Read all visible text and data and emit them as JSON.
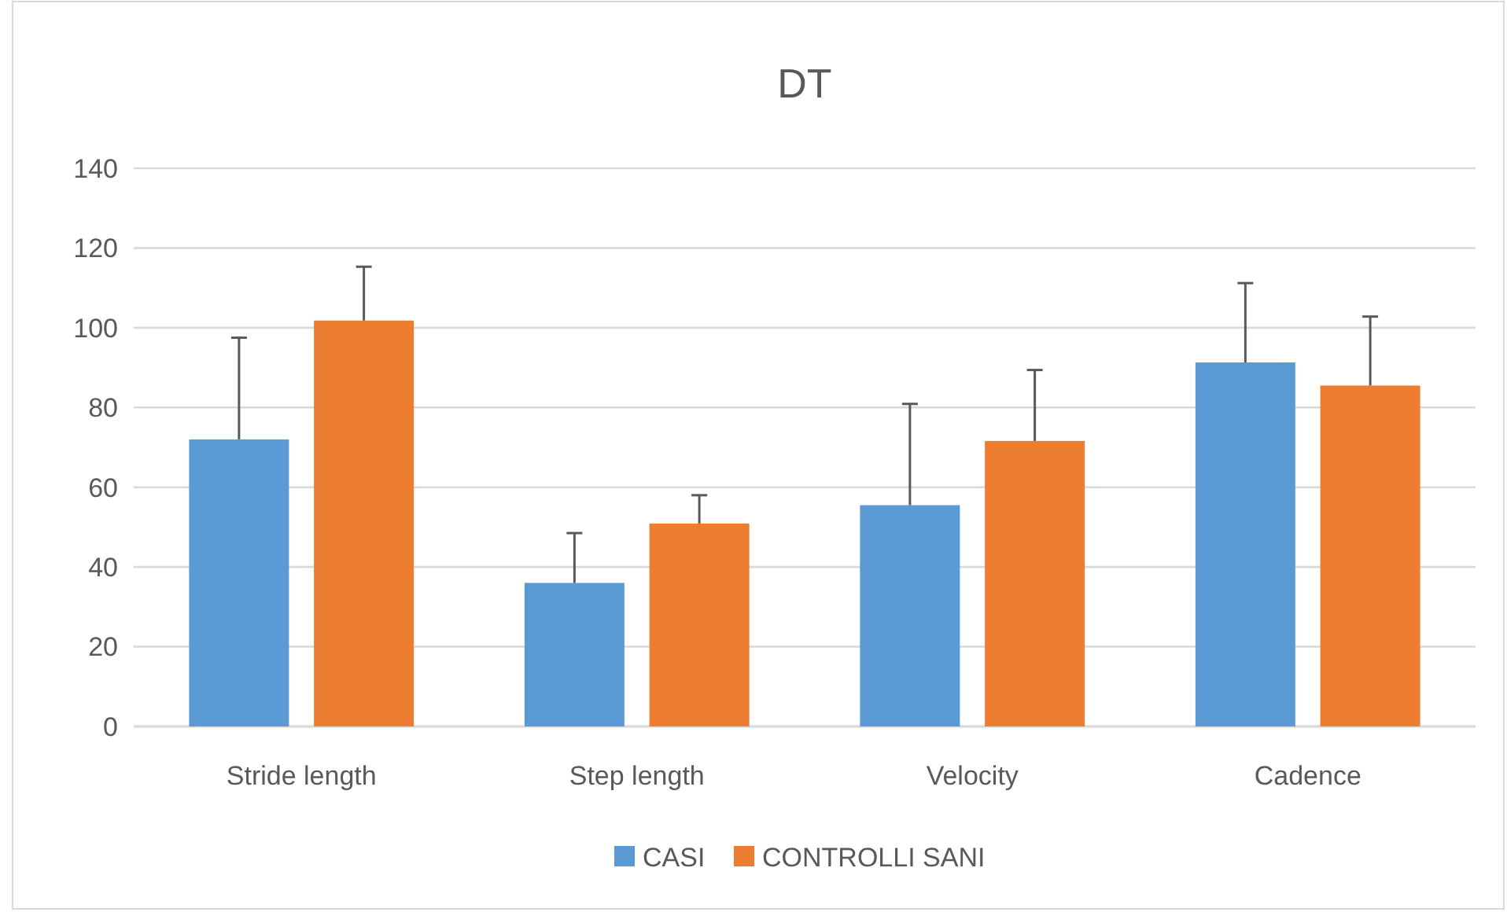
{
  "chart_data": {
    "type": "bar",
    "title": "DT",
    "categories": [
      "Stride length",
      "Step length",
      "Velocity",
      "Cadence"
    ],
    "series": [
      {
        "name": "CASI",
        "color": "#5b9bd5",
        "values": [
          72,
          36,
          55.5,
          91.3
        ],
        "errors": [
          [
            72,
            97.5
          ],
          [
            36,
            48.5
          ],
          [
            55.5,
            80.9
          ],
          [
            91.3,
            111.2
          ]
        ]
      },
      {
        "name": "CONTROLLI SANI",
        "color": "#ed7d31",
        "values": [
          101.8,
          50.9,
          71.6,
          85.5
        ],
        "errors": [
          [
            101.8,
            115.3
          ],
          [
            50.9,
            58
          ],
          [
            71.6,
            89.4
          ],
          [
            85.5,
            102.8
          ]
        ]
      }
    ],
    "ylim": [
      0,
      140
    ],
    "yticks": [
      0,
      20,
      40,
      60,
      80,
      100,
      120,
      140
    ],
    "grid": "y",
    "legend": "bottom"
  }
}
